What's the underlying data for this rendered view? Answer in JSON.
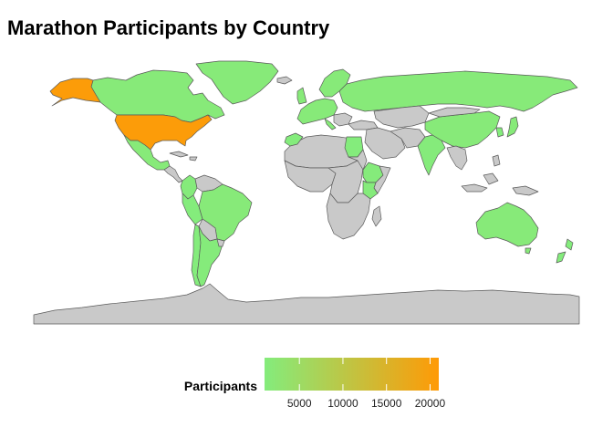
{
  "title": "Marathon Participants by Country",
  "legend": {
    "title": "Participants",
    "ticks": [
      5000,
      10000,
      15000,
      20000
    ],
    "tick_labels": [
      "5000",
      "10000",
      "15000",
      "20000"
    ],
    "range": [
      1000,
      21000
    ],
    "color_low": "#84ec7c",
    "color_high": "#ff9a06"
  },
  "colors": {
    "no_data": "#c9c9c9",
    "border": "#5a5a5a"
  },
  "map_data": {
    "type": "choropleth",
    "value_name": "Participants",
    "countries": [
      {
        "name": "United States",
        "value": 20500
      },
      {
        "name": "Canada",
        "value": 1500
      },
      {
        "name": "Mexico",
        "value": 1500
      },
      {
        "name": "Colombia",
        "value": 1200
      },
      {
        "name": "Brazil",
        "value": 1500
      },
      {
        "name": "Argentina",
        "value": 1200
      },
      {
        "name": "Chile",
        "value": 1000
      },
      {
        "name": "Peru",
        "value": 1000
      },
      {
        "name": "Greenland",
        "value": 1500
      },
      {
        "name": "United Kingdom",
        "value": 1500
      },
      {
        "name": "Europe",
        "value": 1500
      },
      {
        "name": "Russia",
        "value": 1500
      },
      {
        "name": "Morocco",
        "value": 1000
      },
      {
        "name": "Egypt",
        "value": 1000
      },
      {
        "name": "Ethiopia",
        "value": 1200
      },
      {
        "name": "Kenya",
        "value": 1200
      },
      {
        "name": "India",
        "value": 1200
      },
      {
        "name": "China",
        "value": 1500
      },
      {
        "name": "Japan",
        "value": 1500
      },
      {
        "name": "South Korea",
        "value": 1000
      },
      {
        "name": "Australia",
        "value": 1500
      },
      {
        "name": "New Zealand",
        "value": 1000
      }
    ]
  }
}
